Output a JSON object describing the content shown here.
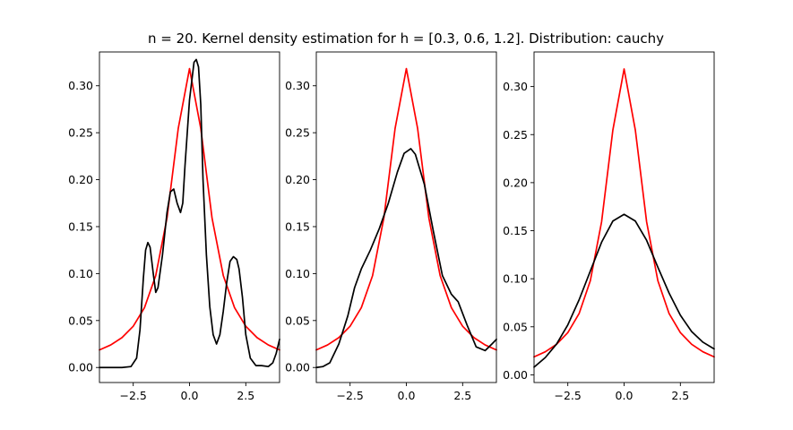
{
  "title": "n = 20. Kernel density estimation for h = [0.3, 0.6, 1.2]. Distribution: cauchy",
  "colors": {
    "true_density": "#ff0000",
    "kde": "#000000"
  },
  "chart_data": [
    {
      "type": "line",
      "xlim": [
        -4,
        4
      ],
      "ylim": [
        -0.016,
        0.336
      ],
      "xticks": [
        "−2.5",
        "0.0",
        "2.5"
      ],
      "yticks": [
        "0.00",
        "0.05",
        "0.10",
        "0.15",
        "0.20",
        "0.25",
        "0.30"
      ],
      "series": [
        {
          "color": "#ff0000",
          "x": [
            -4,
            -3.5,
            -3,
            -2.5,
            -2,
            -1.5,
            -1,
            -0.5,
            0,
            0.5,
            1,
            1.5,
            2,
            2.5,
            3,
            3.5,
            4
          ],
          "y": [
            0.0187,
            0.024,
            0.0318,
            0.0439,
            0.0637,
            0.0979,
            0.1592,
            0.2546,
            0.3183,
            0.2546,
            0.1592,
            0.0979,
            0.0637,
            0.0439,
            0.0318,
            0.024,
            0.0187
          ]
        },
        {
          "color": "#000000",
          "x": [
            -4,
            -3,
            -2.6,
            -2.35,
            -2.2,
            -2.05,
            -1.95,
            -1.85,
            -1.75,
            -1.6,
            -1.5,
            -1.4,
            -1.2,
            -1,
            -0.85,
            -0.7,
            -0.55,
            -0.4,
            -0.3,
            -0.2,
            0,
            0.2,
            0.3,
            0.4,
            0.5,
            0.6,
            0.75,
            0.9,
            1.05,
            1.2,
            1.35,
            1.5,
            1.65,
            1.8,
            1.95,
            2.1,
            2.2,
            2.35,
            2.5,
            2.7,
            2.95,
            3.2,
            3.5,
            3.7,
            3.85,
            4
          ],
          "y": [
            0,
            0,
            0.001,
            0.01,
            0.04,
            0.095,
            0.125,
            0.133,
            0.128,
            0.098,
            0.08,
            0.085,
            0.12,
            0.165,
            0.187,
            0.19,
            0.175,
            0.165,
            0.175,
            0.215,
            0.285,
            0.325,
            0.328,
            0.32,
            0.28,
            0.2,
            0.12,
            0.065,
            0.035,
            0.025,
            0.035,
            0.06,
            0.09,
            0.113,
            0.118,
            0.115,
            0.105,
            0.075,
            0.035,
            0.01,
            0.002,
            0.002,
            0.001,
            0.005,
            0.015,
            0.03
          ]
        }
      ]
    },
    {
      "type": "line",
      "xlim": [
        -4,
        4
      ],
      "ylim": [
        -0.016,
        0.336
      ],
      "xticks": [
        "−2.5",
        "0.0",
        "2.5"
      ],
      "yticks": [
        "0.00",
        "0.05",
        "0.10",
        "0.15",
        "0.20",
        "0.25",
        "0.30"
      ],
      "series": [
        {
          "color": "#ff0000",
          "x": [
            -4,
            -3.5,
            -3,
            -2.5,
            -2,
            -1.5,
            -1,
            -0.5,
            0,
            0.5,
            1,
            1.5,
            2,
            2.5,
            3,
            3.5,
            4
          ],
          "y": [
            0.0187,
            0.024,
            0.0318,
            0.0439,
            0.0637,
            0.0979,
            0.1592,
            0.2546,
            0.3183,
            0.2546,
            0.1592,
            0.0979,
            0.0637,
            0.0439,
            0.0318,
            0.024,
            0.0187
          ]
        },
        {
          "color": "#000000",
          "x": [
            -4,
            -3.7,
            -3.4,
            -3,
            -2.6,
            -2.3,
            -2,
            -1.6,
            -1.2,
            -0.8,
            -0.4,
            -0.1,
            0.2,
            0.4,
            0.8,
            1.2,
            1.6,
            2,
            2.3,
            2.7,
            3.1,
            3.5,
            3.8,
            4
          ],
          "y": [
            0,
            0.001,
            0.005,
            0.025,
            0.055,
            0.085,
            0.105,
            0.125,
            0.148,
            0.175,
            0.208,
            0.228,
            0.233,
            0.227,
            0.195,
            0.145,
            0.098,
            0.078,
            0.07,
            0.045,
            0.022,
            0.018,
            0.025,
            0.03
          ]
        }
      ]
    },
    {
      "type": "line",
      "xlim": [
        -4,
        4
      ],
      "ylim": [
        -0.008,
        0.336
      ],
      "xticks": [
        "−2.5",
        "0.0",
        "2.5"
      ],
      "yticks": [
        "0.00",
        "0.05",
        "0.10",
        "0.15",
        "0.20",
        "0.25",
        "0.30"
      ],
      "series": [
        {
          "color": "#ff0000",
          "x": [
            -4,
            -3.5,
            -3,
            -2.5,
            -2,
            -1.5,
            -1,
            -0.5,
            0,
            0.5,
            1,
            1.5,
            2,
            2.5,
            3,
            3.5,
            4
          ],
          "y": [
            0.0187,
            0.024,
            0.0318,
            0.0439,
            0.0637,
            0.0979,
            0.1592,
            0.2546,
            0.3183,
            0.2546,
            0.1592,
            0.0979,
            0.0637,
            0.0439,
            0.0318,
            0.024,
            0.0187
          ]
        },
        {
          "color": "#000000",
          "x": [
            -4,
            -3.5,
            -3,
            -2.5,
            -2,
            -1.5,
            -1,
            -0.5,
            0,
            0.5,
            1,
            1.5,
            2,
            2.5,
            3,
            3.5,
            4
          ],
          "y": [
            0.008,
            0.018,
            0.032,
            0.052,
            0.078,
            0.108,
            0.138,
            0.16,
            0.167,
            0.16,
            0.14,
            0.112,
            0.085,
            0.062,
            0.045,
            0.034,
            0.027
          ]
        }
      ]
    }
  ]
}
